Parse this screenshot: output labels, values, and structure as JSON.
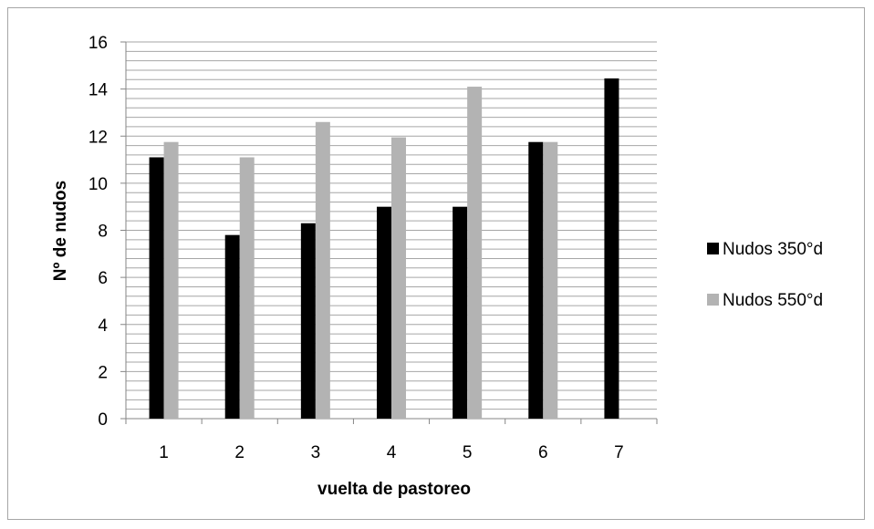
{
  "chart_data": {
    "type": "bar",
    "categories": [
      "1",
      "2",
      "3",
      "4",
      "5",
      "6",
      "7"
    ],
    "series": [
      {
        "name": "Nudos 350°d",
        "color": "#000000",
        "values": [
          11.1,
          7.8,
          8.3,
          9.0,
          9.0,
          11.75,
          14.45
        ]
      },
      {
        "name": "Nudos 550°d",
        "color": "#b3b3b3",
        "values": [
          11.75,
          11.1,
          12.6,
          11.95,
          14.1,
          11.75,
          null
        ]
      }
    ],
    "title": "",
    "xlabel": "vuelta de pastoreo",
    "ylabel": "Nº de nudos",
    "ylim": [
      0,
      16
    ],
    "yticks": [
      "0",
      "2",
      "4",
      "6",
      "8",
      "10",
      "12",
      "14",
      "16"
    ],
    "minor_grid_step": 0.4,
    "grid": true,
    "legend_position": "right"
  }
}
